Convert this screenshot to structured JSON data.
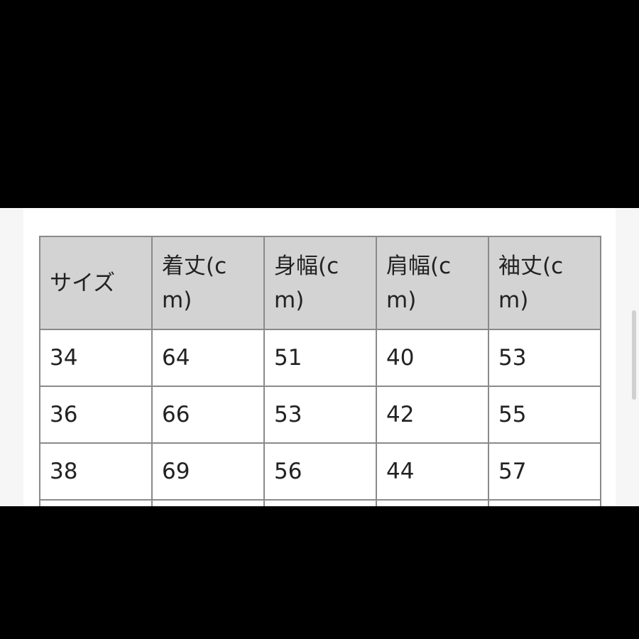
{
  "table": {
    "headers": [
      "サイズ",
      "着丈(cm)",
      "身幅(cm)",
      "肩幅(cm)",
      "袖丈(cm)"
    ],
    "rows": [
      [
        "34",
        "64",
        "51",
        "40",
        "53"
      ],
      [
        "36",
        "66",
        "53",
        "42",
        "55"
      ],
      [
        "38",
        "69",
        "56",
        "44",
        "57"
      ],
      [
        "",
        "",
        "",
        "",
        ""
      ]
    ]
  }
}
